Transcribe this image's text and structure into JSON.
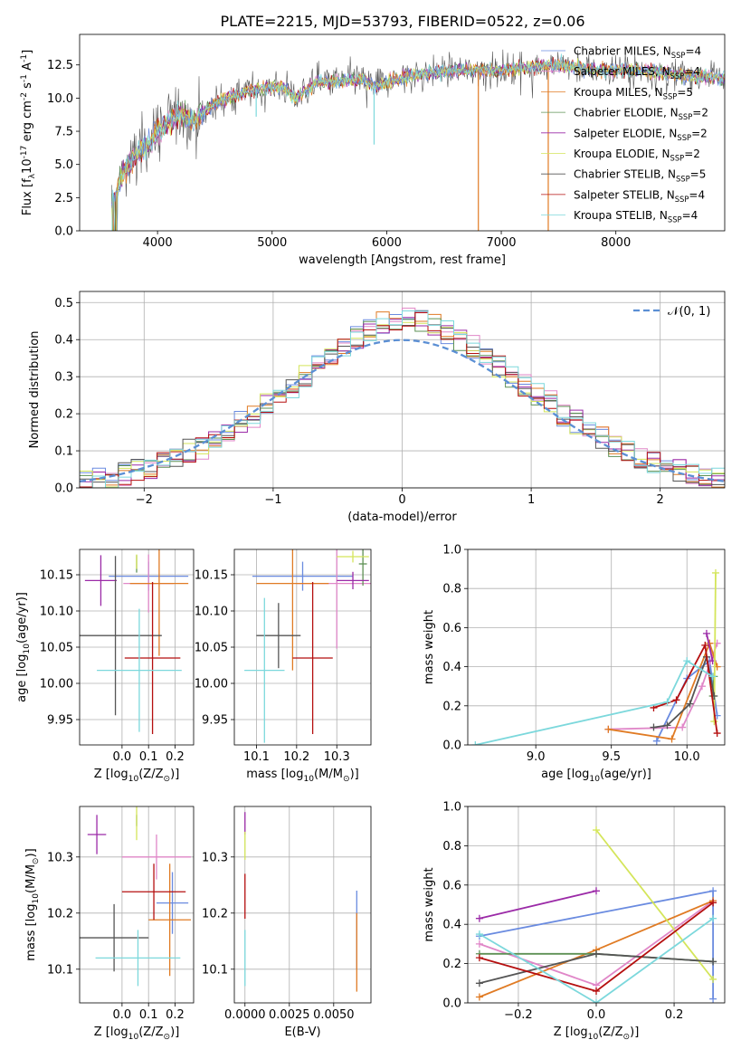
{
  "figure_title": "PLATE=2215, MJD=53793, FIBERID=0522, z=0.06",
  "colors": {
    "chabrier_miles": "#6a8be0",
    "salpeter_miles": "#e087c8",
    "kroupa_miles": "#e07b24",
    "chabrier_elodie": "#5e9155",
    "salpeter_elodie": "#9b2aa7",
    "kroupa_elodie": "#d4e55a",
    "chabrier_stelib": "#555555",
    "salpeter_stelib": "#b50f0f",
    "kroupa_stelib": "#7cd8dc",
    "gauss": "#5b8fd4"
  },
  "chart_data": [
    {
      "id": "spectrum",
      "type": "line",
      "xlabel": "wavelength [Angstrom, rest frame]",
      "ylabel": "Flux [f$_\\lambda$10$^{-17}$ erg cm$^{-2}$ s$^{-1}$ A$^{-1}$]",
      "xlim": [
        3320,
        8950
      ],
      "ylim": [
        0,
        14.8
      ],
      "xticks": [
        "4000",
        "5000",
        "6000",
        "7000",
        "8000"
      ],
      "yticks": [
        "0.0",
        "2.5",
        "5.0",
        "7.5",
        "10.0",
        "12.5"
      ],
      "legend_position": "upper right",
      "legend": [
        "Chabrier MILES, N$_{SSP}$=4",
        "Salpeter MILES, N$_{SSP}$=4",
        "Kroupa MILES, N$_{SSP}$=5",
        "Chabrier ELODIE, N$_{SSP}$=2",
        "Salpeter ELODIE, N$_{SSP}$=2",
        "Kroupa ELODIE, N$_{SSP}$=2",
        "Chabrier STELIB, N$_{SSP}$=5",
        "Salpeter STELIB, N$_{SSP}$=4",
        "Kroupa STELIB, N$_{SSP}$=4"
      ],
      "continuum": [
        [
          3600,
          2.0
        ],
        [
          3700,
          4.5
        ],
        [
          3800,
          5.5
        ],
        [
          3900,
          6.5
        ],
        [
          4000,
          7.5
        ],
        [
          4100,
          8.3
        ],
        [
          4200,
          8.8
        ],
        [
          4300,
          8.2
        ],
        [
          4500,
          9.6
        ],
        [
          4800,
          10.6
        ],
        [
          5100,
          10.9
        ],
        [
          5200,
          10.0
        ],
        [
          5400,
          11.2
        ],
        [
          5800,
          11.4
        ],
        [
          5900,
          10.9
        ],
        [
          6200,
          11.7
        ],
        [
          6600,
          12.1
        ],
        [
          7000,
          12.1
        ],
        [
          7300,
          12.4
        ],
        [
          7500,
          12.5
        ],
        [
          7800,
          12.1
        ],
        [
          8200,
          12.1
        ],
        [
          8400,
          11.9
        ],
        [
          8950,
          11.5
        ]
      ],
      "data_x_range": [
        3600,
        8950
      ]
    },
    {
      "id": "residual_hist",
      "type": "bar",
      "xlabel": "(data-model)/error",
      "ylabel": "Normed distribution",
      "xlim": [
        -2.5,
        2.5
      ],
      "ylim": [
        0,
        0.53
      ],
      "xticks": [
        "−2",
        "−1",
        "0",
        "1",
        "2"
      ],
      "yticks": [
        "0.0",
        "0.1",
        "0.2",
        "0.3",
        "0.4",
        "0.5"
      ],
      "legend": [
        "$\\mathcal{N}(0, 1)$"
      ],
      "legend_position": "upper right",
      "bin_width": 0.1
    },
    {
      "id": "age_vs_Z",
      "type": "scatter",
      "xlabel": "Z [log$_{10}$($Z$/$Z_\\odot$)]",
      "ylabel": "age  [log$_{10}$($age/yr$)]",
      "xlim": [
        -0.16,
        0.27
      ],
      "ylim": [
        9.915,
        10.185
      ],
      "xticks": [
        "0.0",
        "0.1",
        "0.2"
      ],
      "yticks": [
        "9.95",
        "10.00",
        "10.05",
        "10.10",
        "10.15"
      ],
      "points": [
        {
          "x": 0.1,
          "xerr": 0.15,
          "y": 10.148,
          "yerr": 0.02
        },
        {
          "x": 0.1,
          "xerr": 0.095,
          "y": 10.138,
          "yerr": 0.04
        },
        {
          "x": 0.14,
          "xerr": 0.11,
          "y": 10.138,
          "yerr": 0.1
        },
        {
          "x": 0.055,
          "xerr": 0.0,
          "y": 10.165,
          "yerr": 0.012
        },
        {
          "x": -0.08,
          "xerr": 0.06,
          "y": 10.142,
          "yerr": 0.035
        },
        {
          "x": 0.055,
          "xerr": 0.0,
          "y": 10.168,
          "yerr": 0.01
        },
        {
          "x": -0.025,
          "xerr": 0.175,
          "y": 10.066,
          "yerr": 0.11
        },
        {
          "x": 0.115,
          "xerr": 0.105,
          "y": 10.035,
          "yerr": 0.105
        },
        {
          "x": 0.065,
          "xerr": 0.16,
          "y": 10.018,
          "yerr": 0.085
        }
      ]
    },
    {
      "id": "age_vs_mass",
      "type": "scatter",
      "xlabel": "mass [log$_{10}$($M/M_\\odot$)]",
      "ylabel": "",
      "xlim": [
        10.045,
        10.385
      ],
      "ylim": [
        9.915,
        10.185
      ],
      "xticks": [
        "10.1",
        "10.2",
        "10.3"
      ],
      "yticks": [
        "9.95",
        "10.00",
        "10.05",
        "10.10",
        "10.15"
      ],
      "points": [
        {
          "x": 10.215,
          "xerr": 0.125,
          "y": 10.148,
          "yerr": 0.02
        },
        {
          "x": 10.3,
          "xerr": 0.1,
          "y": 10.138,
          "yerr": 0.09
        },
        {
          "x": 10.19,
          "xerr": 0.09,
          "y": 10.138,
          "yerr": 0.12
        },
        {
          "x": 10.365,
          "xerr": 0.01,
          "y": 10.165,
          "yerr": 0.03
        },
        {
          "x": 10.34,
          "xerr": 0.04,
          "y": 10.142,
          "yerr": 0.012
        },
        {
          "x": 10.34,
          "xerr": 0.04,
          "y": 10.175,
          "yerr": 0.008
        },
        {
          "x": 10.155,
          "xerr": 0.055,
          "y": 10.066,
          "yerr": 0.045
        },
        {
          "x": 10.24,
          "xerr": 0.05,
          "y": 10.035,
          "yerr": 0.105
        },
        {
          "x": 10.12,
          "xerr": 0.05,
          "y": 10.018,
          "yerr": 0.1
        }
      ]
    },
    {
      "id": "massweight_vs_age",
      "type": "line",
      "xlabel": "age  [log$_{10}$($age/yr$)]",
      "ylabel": "mass weight",
      "xlim": [
        8.55,
        10.25
      ],
      "ylim": [
        0,
        1.0
      ],
      "xticks": [
        "9.0",
        "9.5",
        "10.0"
      ],
      "yticks": [
        "0.0",
        "0.2",
        "0.4",
        "0.6",
        "0.8",
        "1.0"
      ],
      "series": [
        {
          "x": [
            9.8,
            10.0,
            10.15,
            10.2
          ],
          "y": [
            0.02,
            0.34,
            0.43,
            0.15
          ]
        },
        {
          "x": [
            9.48,
            9.97,
            10.1,
            10.2
          ],
          "y": [
            0.08,
            0.09,
            0.3,
            0.52
          ]
        },
        {
          "x": [
            9.48,
            9.9,
            10.15,
            10.2
          ],
          "y": [
            0.08,
            0.03,
            0.52,
            0.4
          ]
        },
        {
          "x": [
            10.17,
            10.18
          ],
          "y": [
            0.25,
            0.35
          ]
        },
        {
          "x": [
            10.13,
            10.17
          ],
          "y": [
            0.57,
            0.43
          ]
        },
        {
          "x": [
            10.18,
            10.19
          ],
          "y": [
            0.12,
            0.88
          ]
        },
        {
          "x": [
            9.78,
            9.87,
            10.02,
            10.13,
            10.18
          ],
          "y": [
            0.09,
            0.1,
            0.21,
            0.45,
            0.25
          ]
        },
        {
          "x": [
            9.78,
            9.93,
            10.12,
            10.2
          ],
          "y": [
            0.19,
            0.23,
            0.51,
            0.06
          ]
        },
        {
          "x": [
            8.6,
            9.87,
            10.0,
            10.17
          ],
          "y": [
            0.0,
            0.22,
            0.43,
            0.35
          ]
        }
      ]
    },
    {
      "id": "mass_vs_Z",
      "type": "scatter",
      "xlabel": "Z [log$_{10}$($Z$/$Z_\\odot$)]",
      "ylabel": "mass [log$_{10}$($M/M_\\odot$)]",
      "xlim": [
        -0.16,
        0.27
      ],
      "ylim": [
        10.04,
        10.39
      ],
      "xticks": [
        "0.0",
        "0.1",
        "0.2"
      ],
      "yticks": [
        "10.1",
        "10.2",
        "10.3"
      ],
      "points": [
        {
          "x": 0.19,
          "xerr": 0.06,
          "y": 10.218,
          "yerr": 0.055
        },
        {
          "x": 0.13,
          "xerr": 0.13,
          "y": 10.3,
          "yerr": 0.04
        },
        {
          "x": 0.18,
          "xerr": 0.08,
          "y": 10.188,
          "yerr": 0.1
        },
        {
          "x": 0.055,
          "xerr": 0.0,
          "y": 10.365,
          "yerr": 0.01
        },
        {
          "x": -0.095,
          "xerr": 0.035,
          "y": 10.34,
          "yerr": 0.035
        },
        {
          "x": 0.055,
          "xerr": 0.0,
          "y": 10.36,
          "yerr": 0.03
        },
        {
          "x": -0.03,
          "xerr": 0.13,
          "y": 10.156,
          "yerr": 0.06
        },
        {
          "x": 0.12,
          "xerr": 0.12,
          "y": 10.238,
          "yerr": 0.05
        },
        {
          "x": 0.06,
          "xerr": 0.16,
          "y": 10.12,
          "yerr": 0.05
        }
      ]
    },
    {
      "id": "mass_vs_ebv",
      "type": "scatter",
      "xlabel": "E(B-V)",
      "ylabel": "",
      "xlim": [
        -0.0006,
        0.0071
      ],
      "ylim": [
        10.04,
        10.39
      ],
      "xticks": [
        "0.0000",
        "0.0025",
        "0.0050"
      ],
      "yticks": [
        "10.1",
        "10.2",
        "10.3"
      ],
      "points": [
        {
          "x": 0.0063,
          "xerr": 0,
          "y": 10.17,
          "yerr": 0.07
        },
        {
          "x": 0.0063,
          "xerr": 0,
          "y": 10.13,
          "yerr": 0.07
        },
        {
          "x": 0.0,
          "xerr": 0,
          "y": 10.36,
          "yerr": 0.02
        },
        {
          "x": 0.0,
          "xerr": 0,
          "y": 10.32,
          "yerr": 0.025
        },
        {
          "x": 0.0,
          "xerr": 0,
          "y": 10.23,
          "yerr": 0.04
        },
        {
          "x": 0.0,
          "xerr": 0,
          "y": 10.12,
          "yerr": 0.05
        }
      ]
    },
    {
      "id": "massweight_vs_Z",
      "type": "line",
      "xlabel": "Z [log$_{10}$($Z$/$Z_\\odot$)]",
      "ylabel": "mass weight",
      "xlim": [
        -0.33,
        0.33
      ],
      "ylim": [
        0,
        1.0
      ],
      "xticks": [
        "−0.2",
        "0.0",
        "0.2"
      ],
      "yticks": [
        "0.0",
        "0.2",
        "0.4",
        "0.6",
        "0.8",
        "1.0"
      ],
      "series": [
        {
          "x": [
            -0.3,
            0.3,
            0.3
          ],
          "y": [
            0.34,
            0.57,
            0.02
          ]
        },
        {
          "x": [
            -0.3,
            0.0,
            0.3
          ],
          "y": [
            0.3,
            0.09,
            0.52
          ]
        },
        {
          "x": [
            -0.3,
            0.0,
            0.3
          ],
          "y": [
            0.03,
            0.27,
            0.52
          ]
        },
        {
          "x": [
            -0.3,
            0.0,
            0.3
          ],
          "y": [
            0.25,
            0.25,
            0.21
          ]
        },
        {
          "x": [
            -0.3,
            0.0
          ],
          "y": [
            0.43,
            0.57
          ]
        },
        {
          "x": [
            0.0,
            0.3
          ],
          "y": [
            0.88,
            0.12
          ]
        },
        {
          "x": [
            -0.3,
            0.0,
            0.3
          ],
          "y": [
            0.1,
            0.25,
            0.21
          ]
        },
        {
          "x": [
            -0.3,
            0.0,
            0.3
          ],
          "y": [
            0.23,
            0.06,
            0.51
          ]
        },
        {
          "x": [
            -0.3,
            0.0,
            0.3
          ],
          "y": [
            0.35,
            0.0,
            0.43
          ]
        }
      ]
    }
  ]
}
